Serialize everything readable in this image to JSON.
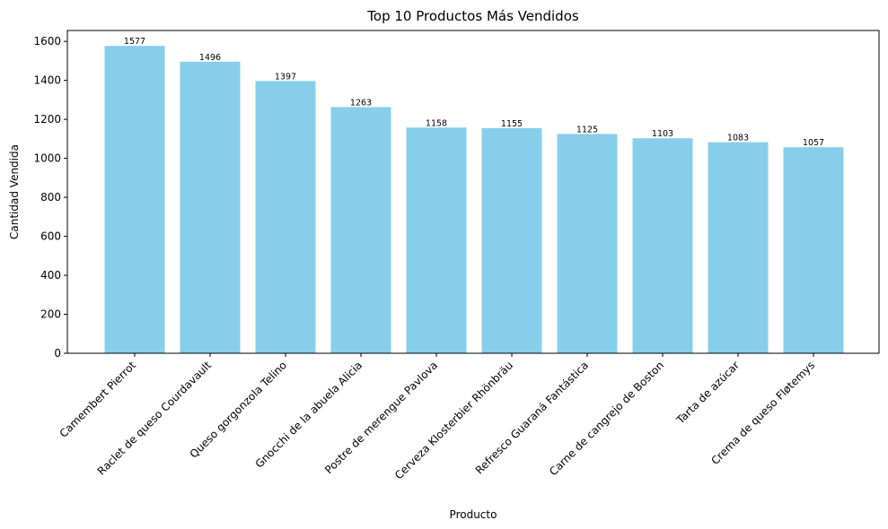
{
  "chart_data": {
    "type": "bar",
    "title": "Top 10 Productos Más Vendidos",
    "xlabel": "Producto",
    "ylabel": "Cantidad Vendida",
    "categories": [
      "Camembert Pierrot",
      "Raclet de queso Courdavault",
      "Queso gorgonzola Telino",
      "Gnocchi de la abuela Alicia",
      "Postre de merengue Pavlova",
      "Cerveza Klosterbier Rhönbräu",
      "Refresco Guaraná Fantástica",
      "Carne de cangrejo de Boston",
      "Tarta de azúcar",
      "Crema de queso Fløtemys"
    ],
    "values": [
      1577,
      1496,
      1397,
      1263,
      1158,
      1155,
      1125,
      1103,
      1083,
      1057
    ],
    "ylim": [
      0,
      1656
    ],
    "yticks": [
      0,
      200,
      400,
      600,
      800,
      1000,
      1200,
      1400,
      1600
    ],
    "grid": false,
    "bar_color": "#87CEEB"
  }
}
